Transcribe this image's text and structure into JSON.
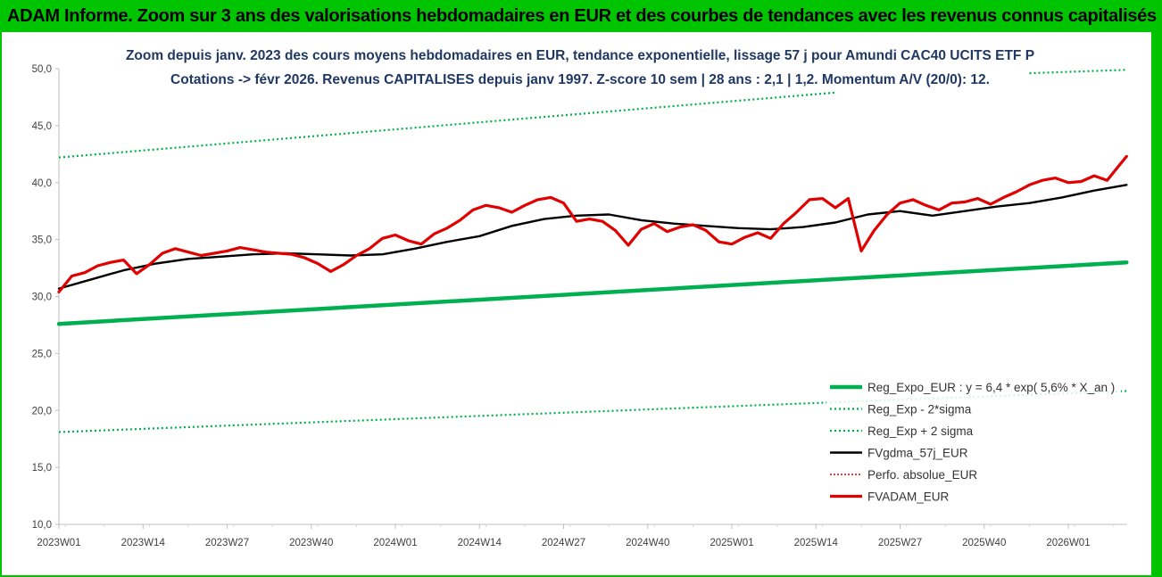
{
  "header": {
    "title": "ADAM Informe. Zoom sur 3 ans des valorisations hebdomadaires en EUR et des courbes de tendances avec les revenus connus capitalisés"
  },
  "colors": {
    "header_bg": "#00c400",
    "reg_expo": "#00b050",
    "fvgdma": "#000000",
    "perfo": "#e00000",
    "fvadam": "#e00000",
    "title_text": "#1f3864"
  },
  "chart_data": {
    "type": "line",
    "title": "Zoom depuis janv. 2023 des cours moyens hebdomadaires en EUR, tendance exponentielle, lissage 57 j pour Amundi CAC40 UCITS ETF P",
    "subtitle": "Cotations -> févr 2026. Revenus CAPITALISES depuis janv 1997. Z-score 10 sem | 28 ans : 2,1 | 1,2. Momentum A/V (20/0): 12.",
    "xlabel": "",
    "ylabel": "",
    "ylim": [
      10,
      50
    ],
    "yticks": [
      "10,0",
      "15,0",
      "20,0",
      "25,0",
      "30,0",
      "35,0",
      "40,0",
      "45,0",
      "50,0"
    ],
    "xticks": [
      "2023W01",
      "2023W14",
      "2023W27",
      "2023W40",
      "2024W01",
      "2024W14",
      "2024W27",
      "2024W40",
      "2025W01",
      "2025W14",
      "2025W27",
      "2025W40",
      "2026W01"
    ],
    "n_weeks": 166,
    "grid": false,
    "legend_position": "bottom-right",
    "series": [
      {
        "name": "Reg_Expo_EUR : y = 6,4 * exp( 5,6% * X_an )",
        "key": "reg_expo",
        "style": "thick",
        "x": [
          0,
          165
        ],
        "values": [
          27.6,
          33.0
        ]
      },
      {
        "name": "Reg_Exp - 2*sigma",
        "key": "reg_minus",
        "style": "dotted",
        "x": [
          0,
          165
        ],
        "values": [
          18.1,
          21.7
        ]
      },
      {
        "name": "Reg_Exp + 2 sigma",
        "key": "reg_plus",
        "style": "dotted",
        "x": [
          0,
          120,
          125,
          135,
          150,
          165
        ],
        "values": [
          42.2,
          47.9,
          null,
          null,
          49.6,
          49.9
        ]
      },
      {
        "name": "FVgdma_57j_EUR",
        "key": "fvgdma",
        "style": "solid",
        "x": [
          0,
          5,
          10,
          15,
          20,
          25,
          30,
          35,
          40,
          45,
          50,
          55,
          60,
          65,
          70,
          75,
          80,
          85,
          90,
          95,
          100,
          105,
          110,
          115,
          120,
          125,
          130,
          135,
          140,
          145,
          150,
          155,
          160,
          165
        ],
        "values": [
          30.7,
          31.5,
          32.3,
          32.9,
          33.3,
          33.5,
          33.7,
          33.8,
          33.7,
          33.6,
          33.7,
          34.2,
          34.8,
          35.3,
          36.2,
          36.8,
          37.1,
          37.2,
          36.7,
          36.4,
          36.2,
          36.0,
          35.9,
          36.1,
          36.5,
          37.2,
          37.5,
          37.1,
          37.5,
          37.9,
          38.2,
          38.7,
          39.3,
          39.8
        ]
      },
      {
        "name": "Perfo. absolue_EUR",
        "key": "perfo",
        "style": "dotted",
        "x": [],
        "values": []
      },
      {
        "name": "FVADAM_EUR",
        "key": "fvadam",
        "style": "thick",
        "x": [
          0,
          2,
          4,
          6,
          8,
          10,
          12,
          14,
          16,
          18,
          20,
          22,
          24,
          26,
          28,
          30,
          32,
          34,
          36,
          38,
          40,
          42,
          44,
          46,
          48,
          50,
          52,
          54,
          56,
          58,
          60,
          62,
          64,
          66,
          68,
          70,
          72,
          74,
          76,
          78,
          80,
          82,
          84,
          86,
          88,
          90,
          92,
          94,
          96,
          98,
          100,
          102,
          104,
          106,
          108,
          110,
          112,
          114,
          116,
          118,
          120,
          122,
          124,
          126,
          128,
          130,
          132,
          134,
          136,
          138,
          140,
          142,
          144,
          146,
          148,
          150,
          152,
          154,
          156,
          158,
          160,
          162,
          164,
          165
        ],
        "values": [
          30.4,
          31.8,
          32.1,
          32.7,
          33.0,
          33.2,
          32.0,
          32.8,
          33.8,
          34.2,
          33.9,
          33.6,
          33.8,
          34.0,
          34.3,
          34.1,
          33.9,
          33.8,
          33.7,
          33.4,
          32.9,
          32.2,
          32.8,
          33.6,
          34.2,
          35.1,
          35.4,
          34.9,
          34.6,
          35.5,
          36.0,
          36.7,
          37.6,
          38.0,
          37.8,
          37.4,
          38.0,
          38.5,
          38.7,
          38.2,
          36.6,
          36.8,
          36.6,
          35.8,
          34.5,
          35.9,
          36.4,
          35.7,
          36.1,
          36.3,
          35.8,
          34.8,
          34.6,
          35.2,
          35.6,
          35.1,
          36.4,
          37.4,
          38.5,
          38.6,
          37.8,
          38.6,
          34.0,
          35.8,
          37.2,
          38.2,
          38.5,
          38.0,
          37.6,
          38.2,
          38.3,
          38.6,
          38.1,
          38.7,
          39.2,
          39.8,
          40.2,
          40.4,
          40.0,
          40.1,
          40.6,
          40.2,
          41.6,
          42.3
        ]
      }
    ]
  }
}
